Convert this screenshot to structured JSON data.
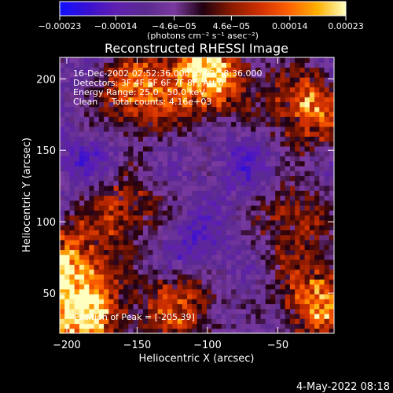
{
  "chart_data": {
    "type": "heatmap",
    "title": "Reconstructed RHESSI Image",
    "xlabel": "Heliocentric X (arcsec)",
    "ylabel": "Heliocentric Y (arcsec)",
    "xlim": [
      -205,
      -10
    ],
    "ylim": [
      22,
      215
    ],
    "xticks": [
      {
        "value": -200,
        "label": "−200"
      },
      {
        "value": -150,
        "label": "−150"
      },
      {
        "value": -100,
        "label": "−100"
      },
      {
        "value": -50,
        "label": "−50"
      }
    ],
    "yticks": [
      {
        "value": 50,
        "label": "50"
      },
      {
        "value": 100,
        "label": "100"
      },
      {
        "value": 150,
        "label": "150"
      },
      {
        "value": 200,
        "label": "200"
      }
    ],
    "colorbar": {
      "range": [
        -0.00023,
        0.00023
      ],
      "ticks": [
        {
          "value": -0.00023,
          "label": "−0.00023"
        },
        {
          "value": -0.00014,
          "label": "−0.00014"
        },
        {
          "value": -4.6e-05,
          "label": "−4.6e−05"
        },
        {
          "value": 4.6e-05,
          "label": "4.6e−05"
        },
        {
          "value": 0.00014,
          "label": "0.00014"
        },
        {
          "value": 0.00023,
          "label": "0.00023"
        }
      ],
      "units_label": "(photons cm⁻² s⁻¹ asec⁻²)",
      "colors": [
        "#1010ff",
        "#3a10d0",
        "#6020b0",
        "#5a2a90",
        "#7a3aa0",
        "#200010",
        "#8a1a00",
        "#d03000",
        "#ff6000",
        "#ffb000",
        "#ffffc0"
      ]
    },
    "annotations": {
      "time_range": "16-Dec-2002 02:52:36.000 to 02:58:36.000",
      "detectors": "Detectors: 3F 4F 5F 6F 7F 8F, Att 0",
      "energy_range": "Energy Range: 25.0 - 50.0 keV",
      "method_counts": "Clean     Total counts: 4.16e+03",
      "peak_position": "Position of Peak = [-205,39]"
    },
    "bright_regions": [
      {
        "x": -100,
        "y": 205,
        "intensity": 1.0
      },
      {
        "x": -150,
        "y": 190,
        "intensity": 0.7
      },
      {
        "x": -30,
        "y": 180,
        "intensity": 0.7
      },
      {
        "x": -190,
        "y": 35,
        "intensity": 0.95
      },
      {
        "x": -200,
        "y": 70,
        "intensity": 0.7
      },
      {
        "x": -20,
        "y": 45,
        "intensity": 0.8
      },
      {
        "x": -120,
        "y": 40,
        "intensity": 0.6
      },
      {
        "x": -160,
        "y": 110,
        "intensity": 0.5
      },
      {
        "x": -40,
        "y": 100,
        "intensity": 0.45
      }
    ],
    "dim_regions": [
      {
        "x": -180,
        "y": 140,
        "intensity": 0.5
      },
      {
        "x": -110,
        "y": 80,
        "intensity": 0.6
      },
      {
        "x": -70,
        "y": 140,
        "intensity": 0.4
      }
    ]
  },
  "footer": {
    "timestamp": "4-May-2022 08:18"
  }
}
